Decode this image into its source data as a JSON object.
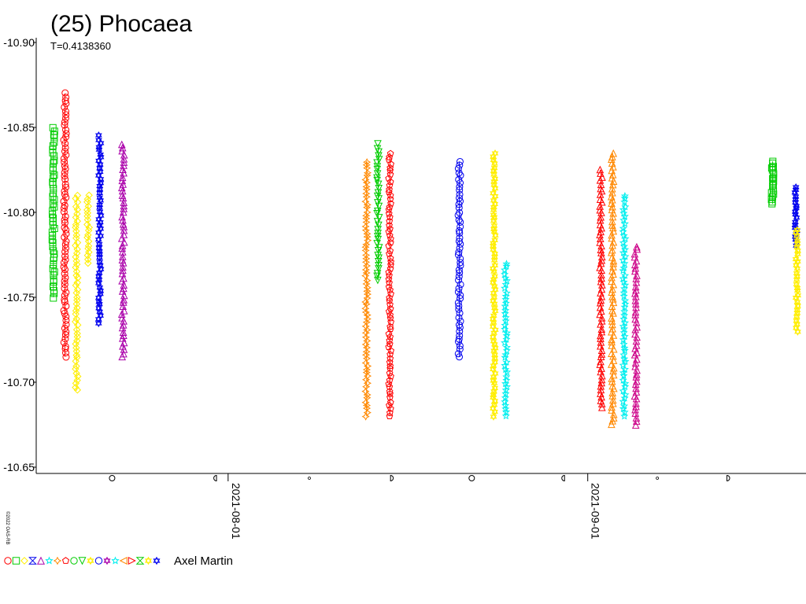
{
  "chart_data": {
    "type": "scatter",
    "title": "(25) Phocaea",
    "subtitle": "T=0.4138360",
    "copyright": "©2022 OAS-RB",
    "observer": "Axel Martin",
    "y_axis": {
      "inverted": true,
      "ylim": [
        -10.65,
        -10.9
      ],
      "ticks": [
        -10.9,
        -10.85,
        -10.8,
        -10.75,
        -10.7,
        -10.65
      ],
      "tick_labels": [
        "-10.90",
        "-10.85",
        "-10.80",
        "-10.75",
        "-10.70",
        "-10.65"
      ]
    },
    "x_axis": {
      "xlim": [
        "2021-07-16",
        "2021-09-19"
      ],
      "date_ticks": [
        {
          "date": "2021-08-01",
          "label": "2021-08-01"
        },
        {
          "date": "2021-09-01",
          "label": "2021-09-01"
        }
      ],
      "moon_phases": [
        {
          "date": "2021-07-22",
          "phase": "full"
        },
        {
          "date": "2021-07-31",
          "phase": "last-quarter"
        },
        {
          "date": "2021-08-08",
          "phase": "new"
        },
        {
          "date": "2021-08-15",
          "phase": "first-quarter"
        },
        {
          "date": "2021-08-22",
          "phase": "full"
        },
        {
          "date": "2021-08-30",
          "phase": "last-quarter"
        },
        {
          "date": "2021-09-07",
          "phase": "new"
        },
        {
          "date": "2021-09-13",
          "phase": "first-quarter"
        }
      ]
    },
    "series": [
      {
        "symbol": "square",
        "color": "#00cc00",
        "x": "2021-07-16T20:00",
        "x_end": "2021-07-17T01:00",
        "y_min": -10.85,
        "y_max": -10.75
      },
      {
        "symbol": "circle",
        "color": "#ff0000",
        "x": "2021-07-17T20:00",
        "x_end": "2021-07-18T01:00",
        "y_min": -10.87,
        "y_max": -10.715
      },
      {
        "symbol": "diamond",
        "color": "#ffee00",
        "x": "2021-07-18T20:00",
        "x_end": "2021-07-19T01:00",
        "y_min": -10.81,
        "y_max": -10.695
      },
      {
        "symbol": "diamond",
        "color": "#ffee00",
        "x": "2021-07-19T20:00",
        "x_end": "2021-07-20T01:00",
        "y_min": -10.81,
        "y_max": -10.77
      },
      {
        "symbol": "star6",
        "color": "#0000ee",
        "x": "2021-07-20T20:00",
        "x_end": "2021-07-21T01:00",
        "y_min": -10.845,
        "y_max": -10.735
      },
      {
        "symbol": "triangle",
        "color": "#aa00aa",
        "x": "2021-07-22T20:00",
        "x_end": "2021-07-23T01:00",
        "y_min": -10.84,
        "y_max": -10.715
      },
      {
        "symbol": "cross",
        "color": "#ff8800",
        "x": "2021-08-12T20:00",
        "x_end": "2021-08-13T01:00",
        "y_min": -10.83,
        "y_max": -10.68
      },
      {
        "symbol": "triangle-down",
        "color": "#00cc00",
        "x": "2021-08-13T20:00",
        "x_end": "2021-08-14T01:00",
        "y_min": -10.84,
        "y_max": -10.76
      },
      {
        "symbol": "pentagon",
        "color": "#ff0000",
        "x": "2021-08-14T20:00",
        "x_end": "2021-08-15T01:00",
        "y_min": -10.835,
        "y_max": -10.68
      },
      {
        "symbol": "circle",
        "color": "#0000ee",
        "x": "2021-08-20T20:00",
        "x_end": "2021-08-21T01:00",
        "y_min": -10.83,
        "y_max": -10.715
      },
      {
        "symbol": "star6",
        "color": "#ffee00",
        "x": "2021-08-23T20:00",
        "x_end": "2021-08-24T01:00",
        "y_min": -10.835,
        "y_max": -10.68
      },
      {
        "symbol": "star5",
        "color": "#00eeee",
        "x": "2021-08-24T20:00",
        "x_end": "2021-08-25T01:00",
        "y_min": -10.77,
        "y_max": -10.68
      },
      {
        "symbol": "triangle",
        "color": "#ff0000",
        "x": "2021-09-02T01:00",
        "x_end": "2021-09-02T06:00",
        "y_min": -10.825,
        "y_max": -10.685
      },
      {
        "symbol": "triangle",
        "color": "#ff8800",
        "x": "2021-09-03T01:00",
        "x_end": "2021-09-03T06:00",
        "y_min": -10.835,
        "y_max": -10.675
      },
      {
        "symbol": "star5",
        "color": "#00eeee",
        "x": "2021-09-04T01:00",
        "x_end": "2021-09-04T06:00",
        "y_min": -10.81,
        "y_max": -10.68
      },
      {
        "symbol": "triangle",
        "color": "#cc0088",
        "x": "2021-09-05T01:00",
        "x_end": "2021-09-05T06:00",
        "y_min": -10.78,
        "y_max": -10.675
      },
      {
        "symbol": "square",
        "color": "#00cc00",
        "x": "2021-09-16T20:00",
        "x_end": "2021-09-17T01:00",
        "y_min": -10.83,
        "y_max": -10.805
      },
      {
        "symbol": "star6",
        "color": "#0000ee",
        "x": "2021-09-18T20:00",
        "x_end": "2021-09-19T01:00",
        "y_min": -10.815,
        "y_max": -10.78
      },
      {
        "symbol": "star6",
        "color": "#ffee00",
        "x": "2021-09-18T22:00",
        "x_end": "2021-09-19T03:00",
        "y_min": -10.79,
        "y_max": -10.73
      }
    ],
    "legend_symbols": [
      {
        "symbol": "circle",
        "color": "#ff0000"
      },
      {
        "symbol": "square",
        "color": "#00cc00"
      },
      {
        "symbol": "diamond",
        "color": "#ffee00"
      },
      {
        "symbol": "hourglass",
        "color": "#0000ee"
      },
      {
        "symbol": "triangle",
        "color": "#aa00aa"
      },
      {
        "symbol": "star5",
        "color": "#00eeee"
      },
      {
        "symbol": "cross",
        "color": "#ff8800"
      },
      {
        "symbol": "pentagon",
        "color": "#ff0000"
      },
      {
        "symbol": "circle",
        "color": "#00cc00"
      },
      {
        "symbol": "triangle-down",
        "color": "#00cc00"
      },
      {
        "symbol": "star6",
        "color": "#ffee00"
      },
      {
        "symbol": "circle",
        "color": "#0000ee"
      },
      {
        "symbol": "star6",
        "color": "#aa00aa"
      },
      {
        "symbol": "star5",
        "color": "#00eeee"
      },
      {
        "symbol": "triangle-left",
        "color": "#ff8800"
      },
      {
        "symbol": "triangle-right",
        "color": "#ff0000"
      },
      {
        "symbol": "hourglass",
        "color": "#00cc00"
      },
      {
        "symbol": "star6",
        "color": "#ffee00"
      },
      {
        "symbol": "star6",
        "color": "#0000ee"
      }
    ]
  }
}
